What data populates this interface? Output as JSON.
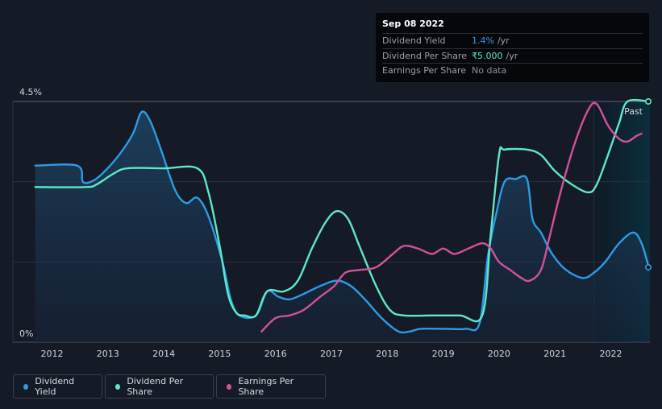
{
  "tooltip": {
    "date": "Sep 08 2022",
    "rows": [
      {
        "label": "Dividend Yield",
        "value": "1.4%",
        "unit": "/yr",
        "color": "#2d9be6"
      },
      {
        "label": "Dividend Per Share",
        "value": "₹5.000",
        "unit": "/yr",
        "color": "#5de8c8"
      },
      {
        "label": "Earnings Per Share",
        "value": "No data",
        "unit": "",
        "color": "#8a9099"
      }
    ]
  },
  "past_label": "Past",
  "legend": [
    {
      "label": "Dividend Yield",
      "color": "#2d9be6"
    },
    {
      "label": "Dividend Per Share",
      "color": "#5de8c8"
    },
    {
      "label": "Earnings Per Share",
      "color": "#d4509a"
    }
  ],
  "chart_data": {
    "type": "line",
    "title": "",
    "xlabel": "",
    "ylabel": "",
    "xlim": [
      2011.3,
      2022.7
    ],
    "ylim": [
      0,
      4.5
    ],
    "y_tick_labels": [
      "0%",
      "4.5%"
    ],
    "x_tick_labels": [
      "2012",
      "2013",
      "2014",
      "2015",
      "2016",
      "2017",
      "2018",
      "2019",
      "2020",
      "2021",
      "2022"
    ],
    "x_ticks": [
      2012,
      2013,
      2014,
      2015,
      2016,
      2017,
      2018,
      2019,
      2020,
      2021,
      2022
    ],
    "forecast_start": 2021.7,
    "series": [
      {
        "name": "Dividend Yield",
        "color": "#2d9be6",
        "points": [
          [
            2011.7,
            3.3
          ],
          [
            2012.45,
            3.3
          ],
          [
            2012.55,
            3.0
          ],
          [
            2012.7,
            3.0
          ],
          [
            2012.9,
            3.15
          ],
          [
            2013.2,
            3.5
          ],
          [
            2013.45,
            3.9
          ],
          [
            2013.6,
            4.3
          ],
          [
            2013.75,
            4.15
          ],
          [
            2013.95,
            3.6
          ],
          [
            2014.2,
            2.85
          ],
          [
            2014.4,
            2.6
          ],
          [
            2014.6,
            2.7
          ],
          [
            2014.8,
            2.35
          ],
          [
            2015.05,
            1.5
          ],
          [
            2015.2,
            0.8
          ],
          [
            2015.35,
            0.5
          ],
          [
            2015.65,
            0.5
          ],
          [
            2015.85,
            0.95
          ],
          [
            2016.05,
            0.85
          ],
          [
            2016.25,
            0.8
          ],
          [
            2016.5,
            0.9
          ],
          [
            2016.8,
            1.05
          ],
          [
            2017.1,
            1.15
          ],
          [
            2017.35,
            1.05
          ],
          [
            2017.6,
            0.8
          ],
          [
            2017.9,
            0.45
          ],
          [
            2018.2,
            0.2
          ],
          [
            2018.4,
            0.2
          ],
          [
            2018.6,
            0.25
          ],
          [
            2019.0,
            0.25
          ],
          [
            2019.4,
            0.25
          ],
          [
            2019.65,
            0.35
          ],
          [
            2019.8,
            1.6
          ],
          [
            2019.95,
            2.4
          ],
          [
            2020.1,
            3.0
          ],
          [
            2020.3,
            3.05
          ],
          [
            2020.5,
            3.05
          ],
          [
            2020.6,
            2.3
          ],
          [
            2020.75,
            2.05
          ],
          [
            2020.95,
            1.65
          ],
          [
            2021.2,
            1.35
          ],
          [
            2021.5,
            1.2
          ],
          [
            2021.7,
            1.3
          ],
          [
            2021.9,
            1.5
          ],
          [
            2022.15,
            1.85
          ],
          [
            2022.4,
            2.05
          ],
          [
            2022.55,
            1.85
          ],
          [
            2022.68,
            1.4
          ]
        ]
      },
      {
        "name": "Dividend Per Share",
        "color": "#5de8c8",
        "points": [
          [
            2011.7,
            2.9
          ],
          [
            2012.6,
            2.9
          ],
          [
            2012.8,
            2.95
          ],
          [
            2013.1,
            3.15
          ],
          [
            2013.35,
            3.25
          ],
          [
            2014.0,
            3.25
          ],
          [
            2014.6,
            3.25
          ],
          [
            2014.8,
            2.8
          ],
          [
            2015.0,
            1.8
          ],
          [
            2015.15,
            0.9
          ],
          [
            2015.3,
            0.55
          ],
          [
            2015.45,
            0.5
          ],
          [
            2015.65,
            0.5
          ],
          [
            2015.85,
            0.95
          ],
          [
            2016.15,
            0.95
          ],
          [
            2016.4,
            1.15
          ],
          [
            2016.65,
            1.75
          ],
          [
            2016.9,
            2.25
          ],
          [
            2017.1,
            2.45
          ],
          [
            2017.3,
            2.3
          ],
          [
            2017.5,
            1.8
          ],
          [
            2017.8,
            1.05
          ],
          [
            2018.05,
            0.6
          ],
          [
            2018.3,
            0.5
          ],
          [
            2018.8,
            0.5
          ],
          [
            2019.3,
            0.5
          ],
          [
            2019.7,
            0.5
          ],
          [
            2019.85,
            2.0
          ],
          [
            2020.0,
            3.5
          ],
          [
            2020.1,
            3.6
          ],
          [
            2020.5,
            3.6
          ],
          [
            2020.75,
            3.5
          ],
          [
            2021.0,
            3.2
          ],
          [
            2021.3,
            2.95
          ],
          [
            2021.6,
            2.8
          ],
          [
            2021.75,
            2.95
          ],
          [
            2021.95,
            3.5
          ],
          [
            2022.15,
            4.1
          ],
          [
            2022.3,
            4.5
          ],
          [
            2022.68,
            4.5
          ]
        ]
      },
      {
        "name": "Earnings Per Share",
        "color": "#d4509a",
        "points": [
          [
            2015.75,
            0.2
          ],
          [
            2016.0,
            0.45
          ],
          [
            2016.25,
            0.5
          ],
          [
            2016.5,
            0.6
          ],
          [
            2016.8,
            0.85
          ],
          [
            2017.05,
            1.05
          ],
          [
            2017.25,
            1.3
          ],
          [
            2017.5,
            1.35
          ],
          [
            2017.8,
            1.4
          ],
          [
            2018.1,
            1.65
          ],
          [
            2018.3,
            1.8
          ],
          [
            2018.55,
            1.75
          ],
          [
            2018.8,
            1.65
          ],
          [
            2019.0,
            1.75
          ],
          [
            2019.2,
            1.65
          ],
          [
            2019.45,
            1.75
          ],
          [
            2019.7,
            1.85
          ],
          [
            2019.85,
            1.75
          ],
          [
            2020.0,
            1.5
          ],
          [
            2020.2,
            1.35
          ],
          [
            2020.4,
            1.2
          ],
          [
            2020.55,
            1.15
          ],
          [
            2020.75,
            1.35
          ],
          [
            2020.9,
            1.95
          ],
          [
            2021.1,
            2.8
          ],
          [
            2021.35,
            3.7
          ],
          [
            2021.6,
            4.35
          ],
          [
            2021.75,
            4.45
          ],
          [
            2021.95,
            4.05
          ],
          [
            2022.15,
            3.8
          ],
          [
            2022.3,
            3.75
          ],
          [
            2022.45,
            3.85
          ],
          [
            2022.55,
            3.9
          ]
        ]
      }
    ]
  }
}
